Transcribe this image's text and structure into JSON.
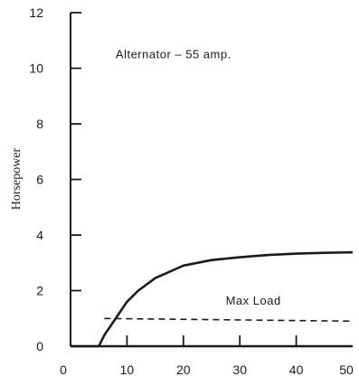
{
  "chart_data": {
    "type": "line",
    "title": "",
    "xlabel": "",
    "ylabel": "Horsepower",
    "xlim": [
      0,
      50
    ],
    "ylim": [
      0,
      12
    ],
    "x_ticks": [
      "0",
      "10",
      "20",
      "30",
      "40",
      "50"
    ],
    "y_ticks": [
      "0",
      "2",
      "4",
      "6",
      "8",
      "10",
      "12"
    ],
    "grid": false,
    "annotations": [
      "Alternator – 55 amp.",
      "Max Load"
    ],
    "series": [
      {
        "style": "solid",
        "x": [
          0,
          5,
          6,
          8,
          10,
          12,
          15,
          20,
          25,
          30,
          35,
          40,
          45,
          50
        ],
        "y": [
          0,
          0,
          0.4,
          1.0,
          1.6,
          2.0,
          2.45,
          2.9,
          3.1,
          3.2,
          3.28,
          3.33,
          3.36,
          3.38
        ]
      },
      {
        "style": "dashed",
        "x": [
          6,
          50
        ],
        "y": [
          1.0,
          0.9
        ]
      }
    ]
  }
}
